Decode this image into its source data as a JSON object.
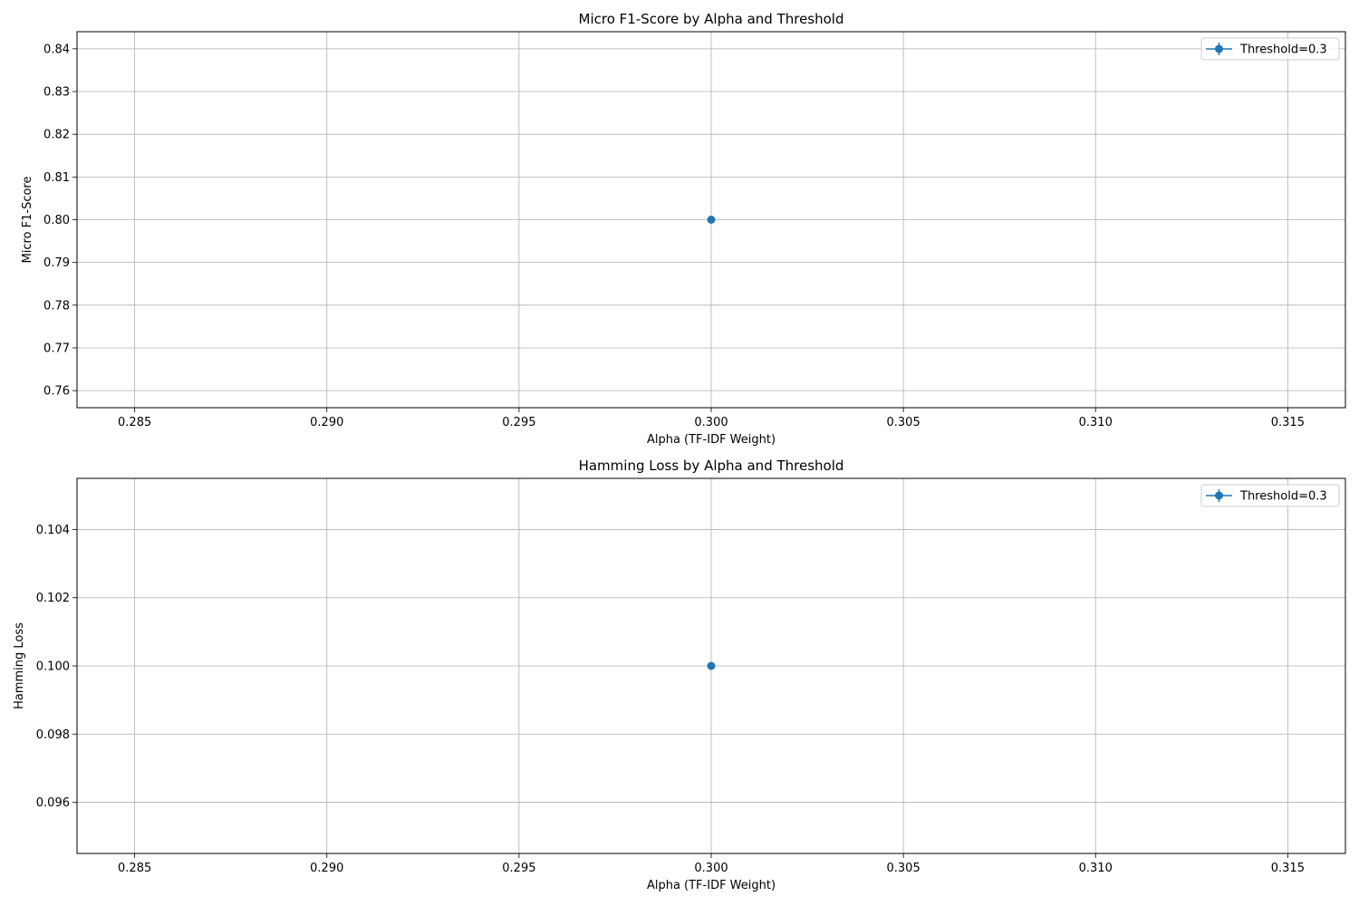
{
  "chart_data": [
    {
      "type": "line",
      "title": "Micro F1-Score by Alpha and Threshold",
      "xlabel": "Alpha (TF-IDF Weight)",
      "ylabel": "Micro F1-Score",
      "xlim": [
        0.2835,
        0.3165
      ],
      "ylim": [
        0.756,
        0.844
      ],
      "xticks": [
        0.285,
        0.29,
        0.295,
        0.3,
        0.305,
        0.31,
        0.315
      ],
      "xtick_labels": [
        "0.285",
        "0.290",
        "0.295",
        "0.300",
        "0.305",
        "0.310",
        "0.315"
      ],
      "yticks": [
        0.76,
        0.77,
        0.78,
        0.79,
        0.8,
        0.81,
        0.82,
        0.83,
        0.84
      ],
      "ytick_labels": [
        "0.76",
        "0.77",
        "0.78",
        "0.79",
        "0.80",
        "0.81",
        "0.82",
        "0.83",
        "0.84"
      ],
      "grid": true,
      "legend_position": "top-right",
      "series": [
        {
          "name": "Threshold=0.3",
          "color": "#1f77b4",
          "marker": "circle",
          "x": [
            0.3
          ],
          "y": [
            0.8
          ]
        }
      ]
    },
    {
      "type": "line",
      "title": "Hamming Loss by Alpha and Threshold",
      "xlabel": "Alpha (TF-IDF Weight)",
      "ylabel": "Hamming Loss",
      "xlim": [
        0.2835,
        0.3165
      ],
      "ylim": [
        0.0945,
        0.1055
      ],
      "xticks": [
        0.285,
        0.29,
        0.295,
        0.3,
        0.305,
        0.31,
        0.315
      ],
      "xtick_labels": [
        "0.285",
        "0.290",
        "0.295",
        "0.300",
        "0.305",
        "0.310",
        "0.315"
      ],
      "yticks": [
        0.096,
        0.098,
        0.1,
        0.102,
        0.104
      ],
      "ytick_labels": [
        "0.096",
        "0.098",
        "0.100",
        "0.102",
        "0.104"
      ],
      "grid": true,
      "legend_position": "top-right",
      "series": [
        {
          "name": "Threshold=0.3",
          "color": "#1f77b4",
          "marker": "circle",
          "x": [
            0.3
          ],
          "y": [
            0.1
          ]
        }
      ]
    }
  ]
}
